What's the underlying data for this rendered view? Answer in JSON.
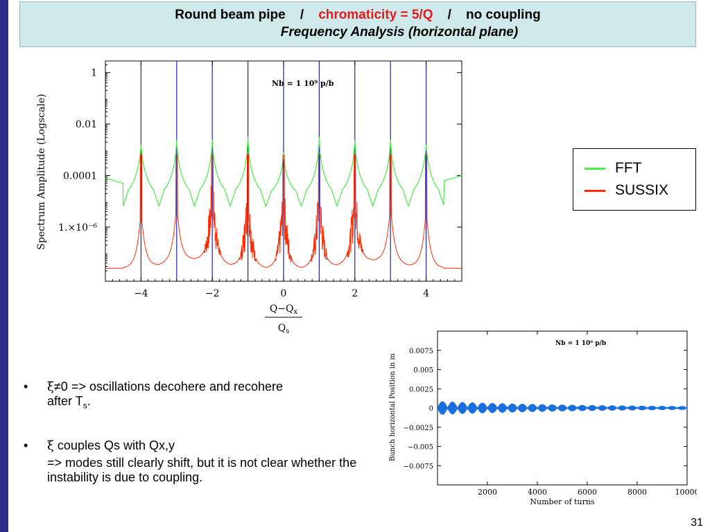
{
  "slide": {
    "title_part1": "Round beam pipe",
    "title_sep1": "/",
    "title_part2": "chromaticity = 5/Q",
    "title_sep2": "/",
    "title_part3": "no coupling",
    "subtitle": "Frequency Analysis (horizontal plane)",
    "page_number": "31",
    "accent_color": "#e51a1a",
    "title_bg": "#cfe8ea",
    "left_bar_color": "#2e2e8a"
  },
  "legend": {
    "items": [
      {
        "label": "FFT",
        "color": "#44ee44"
      },
      {
        "label": "SUSSIX",
        "color": "#ff2a00"
      }
    ]
  },
  "bullets": {
    "b1_symbol": "ξ",
    "b1_text": "≠0 => oscillations decohere and recohere",
    "b1_after": "after T",
    "b1_sub": "s",
    "b1_end": ".",
    "b2_symbol": "ξ",
    "b2_text": " couples Qs with Qx,y",
    "b2_line2": "=> modes still clearly shift, but it is not clear whether the instability is due to coupling."
  },
  "chart_data": [
    {
      "type": "line",
      "ylabel": "Spectrum Amplitude (Logscale)",
      "xlabel_num": "Q−Q",
      "xlabel_num_sub": "x",
      "xlabel_den": "Q",
      "xlabel_den_sub": "s",
      "annotation": "Nb  =  1  10⁹  p/b",
      "log_scale_y": true,
      "xlim": [
        -5,
        5
      ],
      "x_ticks": [
        -4,
        -2,
        0,
        2,
        4
      ],
      "x_tick_labels": [
        "−4",
        "−2",
        "0",
        "2",
        "4"
      ],
      "y_tick_labels": [
        "1",
        "0.01",
        "0.0001",
        "1.×10⁻⁶"
      ],
      "y_tick_values": [
        1,
        0.01,
        0.0001,
        1e-06
      ],
      "vertical_lines": [
        -4,
        -3,
        -2,
        -1,
        0,
        1,
        2,
        3,
        4
      ],
      "series": [
        {
          "name": "FFT",
          "color": "#44ee44",
          "description_values": {
            "baseline": 3e-05,
            "peaks_at": [
              -4,
              -3,
              -2,
              -1,
              0,
              1,
              2,
              3,
              4
            ]
          }
        },
        {
          "name": "SUSSIX",
          "color": "#ff2a00",
          "description_values": {
            "baseline": 5e-08,
            "peaks_at": [
              -4,
              -3,
              -2,
              -1,
              0,
              1,
              2,
              3,
              4
            ]
          }
        }
      ]
    },
    {
      "type": "line",
      "ylabel": "Bunch horizontal Position in m",
      "xlabel": "Number of turns",
      "annotation": "Nb  =  1  10⁹  p/b",
      "xlim": [
        0,
        10000
      ],
      "ylim": [
        -0.01,
        0.01
      ],
      "x_ticks": [
        2000,
        4000,
        6000,
        8000,
        10000
      ],
      "x_tick_labels": [
        "2000",
        "4000",
        "6000",
        "8000",
        "10000"
      ],
      "y_ticks": [
        0.0075,
        0.005,
        0.0025,
        0,
        -0.0025,
        -0.005,
        -0.0075
      ],
      "y_tick_labels": [
        "0.0075",
        "0.005",
        "0.0025",
        "0",
        "−0.0025",
        "−0.005",
        "−0.0075"
      ],
      "series": [
        {
          "name": "",
          "color": "#1a6fe0",
          "initial_amplitude": 0.0008,
          "final_amplitude": 0.0003,
          "beat_period_turns": 400
        }
      ]
    }
  ]
}
